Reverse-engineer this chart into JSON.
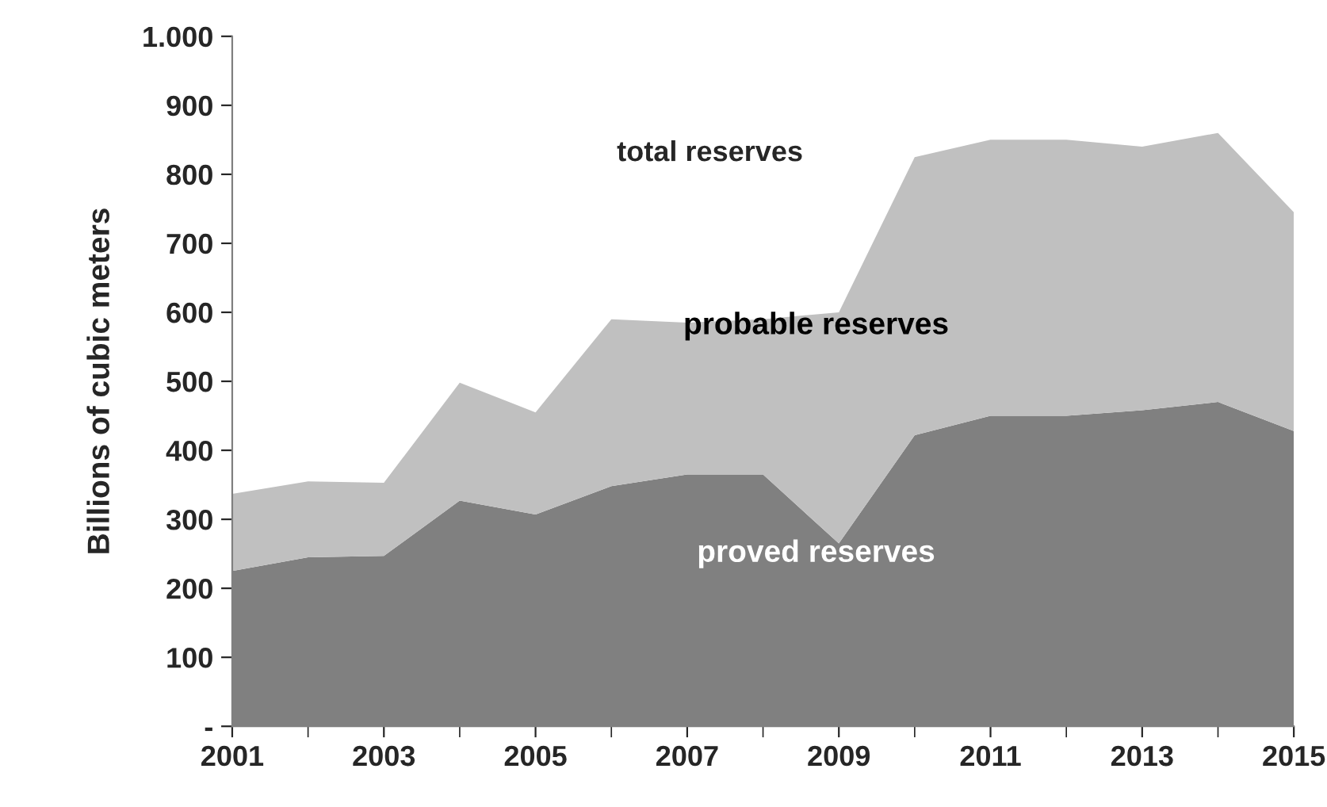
{
  "chart_data": {
    "type": "area",
    "stacked": true,
    "ylabel": "Billions of cubic meters",
    "x": [
      2001,
      2002,
      2003,
      2004,
      2005,
      2006,
      2007,
      2008,
      2009,
      2010,
      2011,
      2012,
      2013,
      2014,
      2015
    ],
    "series": [
      {
        "name": "proved reserves",
        "color": "#808080",
        "values": [
          225,
          245,
          247,
          327,
          307,
          348,
          365,
          365,
          265,
          422,
          450,
          450,
          458,
          470,
          428
        ]
      },
      {
        "name": "probable reserves",
        "color": "#c0c0c0",
        "values": [
          112,
          110,
          106,
          171,
          148,
          242,
          220,
          225,
          335,
          403,
          400,
          400,
          382,
          390,
          317
        ]
      }
    ],
    "annotations": [
      "total reserves"
    ],
    "xlim": [
      2001,
      2015
    ],
    "xticks": [
      2001,
      2003,
      2005,
      2007,
      2009,
      2011,
      2013,
      2015
    ],
    "ylim": [
      0,
      1000
    ],
    "yticks": [
      {
        "value": 0,
        "label": "-"
      },
      100,
      200,
      300,
      400,
      500,
      600,
      700,
      800,
      900,
      {
        "value": 1000,
        "label": "1.000"
      }
    ],
    "grid": false,
    "legend": false
  }
}
